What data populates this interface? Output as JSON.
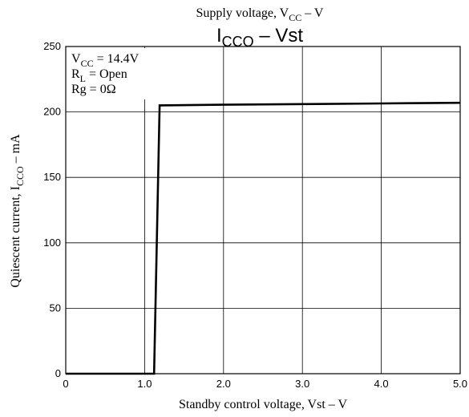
{
  "chart_data": {
    "type": "line",
    "top_label": {
      "pre": "Supply voltage, V",
      "sub": "CC",
      "post": " – V"
    },
    "title": {
      "main": "I",
      "sub": "CCO",
      "post": " – Vst"
    },
    "xlabel": "Standby control voltage, Vst – V",
    "ylabel": {
      "pre": "Quiescent current, I",
      "sub": "CCO",
      "post": " – mA"
    },
    "xlim": [
      0,
      5.0
    ],
    "ylim": [
      0,
      250
    ],
    "x_ticks": [
      0,
      1.0,
      2.0,
      3.0,
      4.0,
      5.0
    ],
    "x_tick_labels": [
      "0",
      "1.0",
      "2.0",
      "3.0",
      "4.0",
      "5.0"
    ],
    "y_ticks": [
      0,
      50,
      100,
      150,
      200,
      250
    ],
    "y_tick_labels": [
      "0",
      "50",
      "100",
      "150",
      "200",
      "250"
    ],
    "grid": true,
    "conditions": [
      {
        "pre": "V",
        "sub": "CC",
        "post": " = 14.4V"
      },
      {
        "pre": "R",
        "sub": "L",
        "post": " = Open"
      },
      {
        "pre": "Rg",
        "sub": "",
        "post": " = 0Ω"
      }
    ],
    "series": [
      {
        "x": [
          0,
          1.12,
          1.19,
          2.0,
          3.0,
          4.0,
          5.0
        ],
        "y": [
          0,
          0,
          205,
          205.5,
          206,
          206.5,
          207
        ]
      }
    ]
  }
}
